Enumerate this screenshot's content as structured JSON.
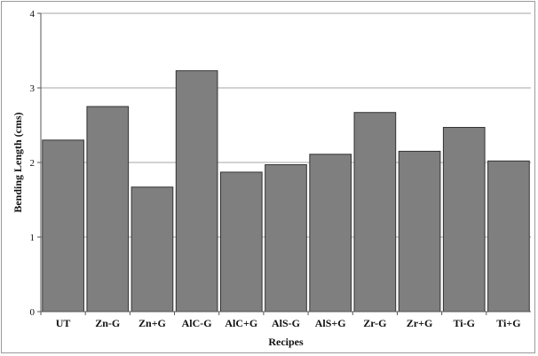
{
  "chart_data": {
    "type": "bar",
    "title": "",
    "xlabel": "Recipes",
    "ylabel": "Bending Length (cms)",
    "categories": [
      "UT",
      "Zn-G",
      "Zn+G",
      "AlC-G",
      "AlC+G",
      "AlS-G",
      "AlS+G",
      "Zr-G",
      "Zr+G",
      "Ti-G",
      "Ti+G"
    ],
    "values": [
      2.3,
      2.75,
      1.67,
      3.23,
      1.87,
      1.97,
      2.11,
      2.67,
      2.15,
      2.47,
      2.02
    ],
    "ylim": [
      0,
      4
    ],
    "yticks": [
      "0",
      "1",
      "2",
      "3",
      "4"
    ],
    "grid": true,
    "legend": "none",
    "colors": {
      "bar": "#7f7f7f",
      "bar_stroke": "#333333",
      "grid": "#a6a6a6",
      "axis": "#555555"
    }
  }
}
